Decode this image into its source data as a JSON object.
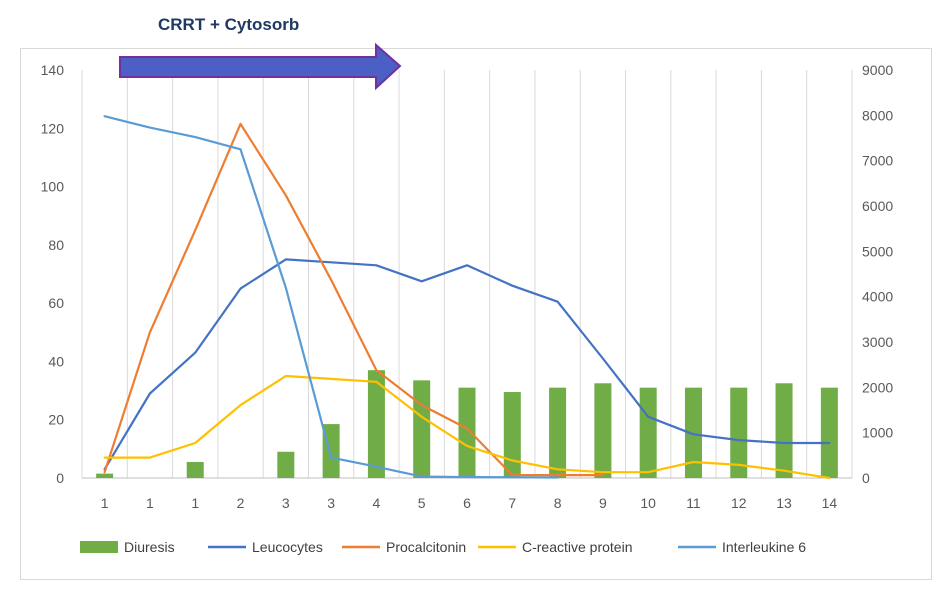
{
  "banner": {
    "label": "CRRT + Cytosorb"
  },
  "chart_data": {
    "type": "bar+line",
    "categories": [
      "1",
      "1",
      "1",
      "2",
      "3",
      "3",
      "4",
      "5",
      "6",
      "7",
      "8",
      "9",
      "10",
      "11",
      "12",
      "13",
      "14"
    ],
    "y_left": {
      "range": [
        0,
        140
      ],
      "ticks": [
        0,
        20,
        40,
        60,
        80,
        100,
        120,
        140
      ]
    },
    "y_right": {
      "range": [
        0,
        9000
      ],
      "ticks": [
        0,
        1000,
        2000,
        3000,
        4000,
        5000,
        6000,
        7000,
        8000,
        9000
      ]
    },
    "grid": "vertical",
    "legend_position": "bottom",
    "series": [
      {
        "name": "Diuresis",
        "type": "bar",
        "axis": "left",
        "color": "#70ad47",
        "values": [
          1.5,
          null,
          5.5,
          null,
          9,
          18.5,
          37,
          33.5,
          31,
          29.5,
          31,
          32.5,
          31,
          31,
          31,
          32.5,
          31
        ]
      },
      {
        "name": "Leucocytes",
        "type": "line",
        "axis": "left",
        "color": "#4472c4",
        "values": [
          3,
          29,
          43,
          65,
          75,
          74,
          73,
          67.5,
          73,
          66,
          60.5,
          41,
          21,
          15,
          13,
          12,
          12
        ]
      },
      {
        "name": "Procalcitonin",
        "type": "line",
        "axis": "left",
        "color": "#ed7d31",
        "values": [
          2,
          50,
          85,
          121.5,
          97,
          68,
          37,
          25,
          17,
          1,
          1,
          1,
          null,
          null,
          null,
          null,
          null
        ]
      },
      {
        "name": "C-reactive protein",
        "type": "line",
        "axis": "left",
        "color": "#ffc000",
        "values": [
          7,
          7,
          12,
          25,
          35,
          34,
          33,
          21,
          11,
          6,
          3,
          2,
          2,
          5.5,
          4.5,
          2.5,
          0
        ]
      },
      {
        "name": "Interleukine 6",
        "type": "line",
        "axis": "right",
        "color": "#5b9bd5",
        "values": [
          7980,
          7730,
          7520,
          7250,
          4200,
          450,
          250,
          30,
          20,
          15,
          10,
          null,
          null,
          null,
          null,
          null,
          null
        ]
      }
    ]
  }
}
